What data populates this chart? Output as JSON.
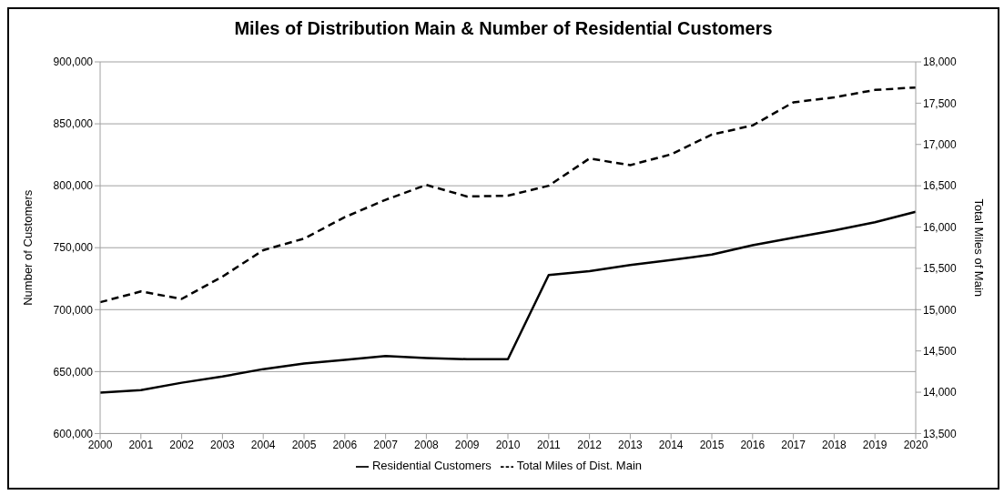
{
  "chart_data": {
    "type": "line",
    "title": "Miles of Distribution Main & Number of Residential Customers",
    "categories": [
      "2000",
      "2001",
      "2002",
      "2003",
      "2004",
      "2005",
      "2006",
      "2007",
      "2008",
      "2009",
      "2010",
      "2011",
      "2012",
      "2013",
      "2014",
      "2015",
      "2016",
      "2017",
      "2018",
      "2019",
      "2020"
    ],
    "series": [
      {
        "name": "Residential Customers",
        "color": "#000000",
        "line_style": "solid",
        "values": [
          633000,
          635000,
          641000,
          646000,
          652000,
          656500,
          659500,
          662500,
          661000,
          660000,
          660000,
          728000,
          731000,
          736000,
          740000,
          744500,
          752000,
          758000,
          764000,
          770500,
          779000
        ]
      },
      {
        "name": "Total Miles of Dist. Main",
        "color": "#000000",
        "line_style": "dashed",
        "axis": "y2",
        "values": [
          15090,
          15220,
          15130,
          15400,
          15720,
          15860,
          16120,
          16330,
          16510,
          16370,
          16380,
          16500,
          16830,
          16750,
          16880,
          17120,
          17230,
          17510,
          17570,
          17660,
          17690
        ]
      }
    ],
    "ylabel": "Number of Customers",
    "y2label": "Total Miles of Main",
    "ylim": [
      600000,
      900000
    ],
    "yticks": [
      {
        "value": 600000,
        "label": "600,000"
      },
      {
        "value": 650000,
        "label": "650,000"
      },
      {
        "value": 700000,
        "label": "700,000"
      },
      {
        "value": 750000,
        "label": "750,000"
      },
      {
        "value": 800000,
        "label": "800,000"
      },
      {
        "value": 850000,
        "label": "850,000"
      },
      {
        "value": 900000,
        "label": "900,000"
      }
    ],
    "y2lim": [
      13500,
      18000
    ],
    "y2ticks": [
      {
        "value": 13500,
        "label": "13,500"
      },
      {
        "value": 14000,
        "label": "14,000"
      },
      {
        "value": 14500,
        "label": "14,500"
      },
      {
        "value": 15000,
        "label": "15,000"
      },
      {
        "value": 15500,
        "label": "15,500"
      },
      {
        "value": 16000,
        "label": "16,000"
      },
      {
        "value": 16500,
        "label": "16,500"
      },
      {
        "value": 17000,
        "label": "17,000"
      },
      {
        "value": 17500,
        "label": "17,500"
      },
      {
        "value": 18000,
        "label": "18,000"
      }
    ],
    "grid": "y",
    "legend": "bottom",
    "marker": "none"
  }
}
